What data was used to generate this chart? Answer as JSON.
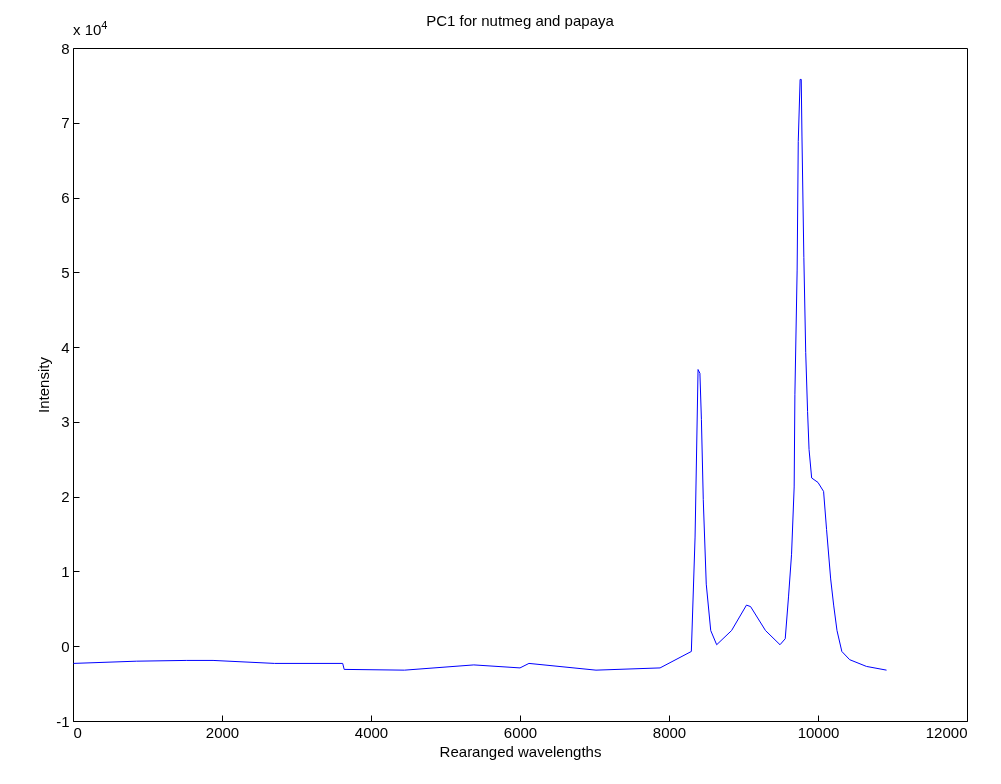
{
  "chart_data": {
    "type": "line",
    "title": "PC1 for nutmeg and papaya",
    "xlabel": "Rearanged wavelengths",
    "ylabel": "Intensity",
    "annotations": [
      "x 10$^{4}$"
    ],
    "x": [
      5,
      855,
      1520,
      1880,
      2705,
      3620,
      3640,
      4450,
      5380,
      6000,
      6120,
      7020,
      7880,
      8300,
      8350,
      8390,
      8415,
      8435,
      8460,
      8500,
      8560,
      8640,
      8840,
      9040,
      9095,
      9295,
      9490,
      9560,
      9605,
      9645,
      9680,
      9690,
      9720,
      9735,
      9760,
      9775,
      9785,
      9810,
      9835,
      9860,
      9880,
      9915,
      10000,
      10075,
      10115,
      10140,
      10170,
      10210,
      10255,
      10320,
      10425,
      10650,
      10920
    ],
    "series": [
      {
        "color": "#0000ff",
        "values": [
          -0.23,
          -0.2,
          -0.19,
          -0.19,
          -0.23,
          -0.23,
          -0.31,
          -0.32,
          -0.25,
          -0.29,
          -0.23,
          -0.32,
          -0.29,
          -0.07,
          1.46,
          3.7,
          3.65,
          3.03,
          1.96,
          0.83,
          0.21,
          0.02,
          0.21,
          0.55,
          0.53,
          0.21,
          0.02,
          0.1,
          0.67,
          1.23,
          2.13,
          3.37,
          5.03,
          6.75,
          7.58,
          7.58,
          6.81,
          5.2,
          3.93,
          3.14,
          2.63,
          2.25,
          2.19,
          2.07,
          1.56,
          1.26,
          0.9,
          0.55,
          0.21,
          -0.07,
          -0.18,
          -0.27,
          -0.32
        ]
      }
    ],
    "xlim": [
      0,
      12000
    ],
    "xticks": [
      0,
      2000,
      4000,
      6000,
      8000,
      10000,
      12000
    ],
    "ylim": [
      -1,
      8
    ],
    "yticks": [
      -1,
      0,
      1,
      2,
      3,
      4,
      5,
      6,
      7,
      8
    ],
    "grid": false,
    "line_style": "solid"
  }
}
